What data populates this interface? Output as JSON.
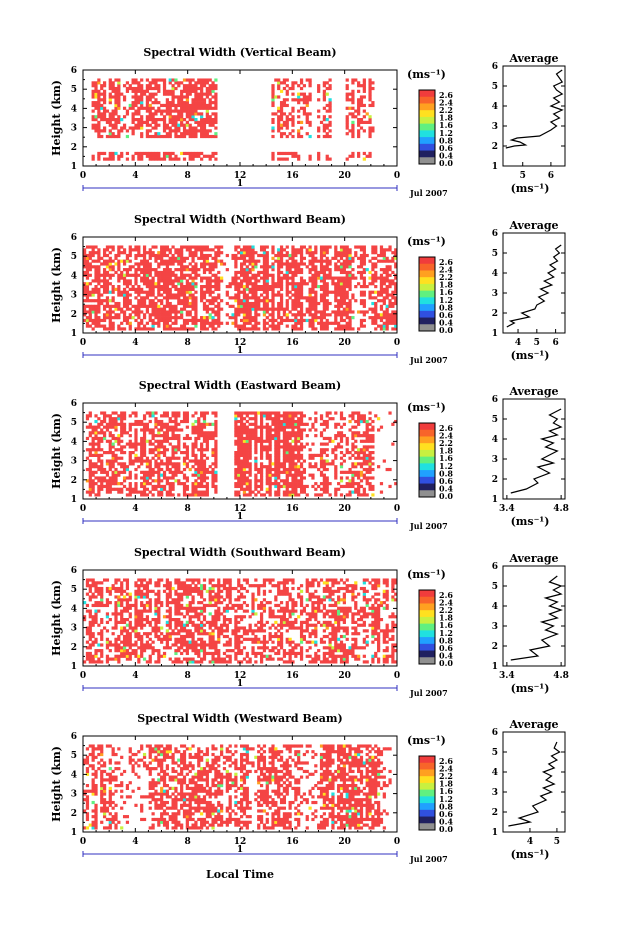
{
  "figure": {
    "xlabel": "Local Time",
    "date_label": "Jul 2007",
    "day_label": "1",
    "colorbar_unit": "(ms⁻¹)",
    "colorbar_ticks": [
      "2.6",
      "2.4",
      "2.2",
      "1.8",
      "1.6",
      "1.2",
      "0.8",
      "0.6",
      "0.4",
      "0.0"
    ],
    "colors": {
      "field": "#f44444",
      "colorbar": [
        "#f03c3c",
        "#f8642a",
        "#ffa020",
        "#ffe020",
        "#c8f040",
        "#60f080",
        "#20e0e0",
        "#20a0ff",
        "#3050e0",
        "#202060",
        "#909090"
      ]
    }
  },
  "chart_data": [
    {
      "type": "heatmap",
      "title": "Spectral Width (Vertical Beam)",
      "ylabel": "Height (km)",
      "xlim": [
        0,
        24
      ],
      "ylim": [
        1,
        6
      ],
      "xticks": [
        "0",
        "4",
        "8",
        "12",
        "16",
        "20",
        "0"
      ],
      "yticks": [
        "1",
        "2",
        "3",
        "4",
        "5",
        "6"
      ],
      "rows": [
        [
          1.3,
          1.8
        ],
        [
          2.4,
          5.6
        ]
      ],
      "segments": [
        [
          0.6,
          10.2,
          0.62,
          0.06
        ],
        [
          14.3,
          15.8,
          0.52,
          0.06
        ],
        [
          15.8,
          17.4,
          0.45,
          0.05
        ],
        [
          17.8,
          19.0,
          0.5,
          0.05
        ],
        [
          20.0,
          22.3,
          0.58,
          0.05
        ],
        [
          22.3,
          24.0,
          0.0,
          0.04
        ]
      ],
      "avg": {
        "title": "Average",
        "xlabel": "(ms⁻¹)",
        "xlim": [
          4.3,
          6.5
        ],
        "xticks": [
          "5",
          "6"
        ],
        "x": [
          4.4,
          4.7,
          5.1,
          4.9,
          4.6,
          4.8,
          5.6,
          6.0,
          6.2,
          6.0,
          6.3,
          6.1,
          6.4,
          6.0,
          6.3,
          6.1,
          6.4,
          6.2,
          6.1,
          6.4,
          6.3,
          6.2,
          6.4
        ],
        "y": [
          1.9,
          2.0,
          2.05,
          2.2,
          2.3,
          2.4,
          2.5,
          2.8,
          3.0,
          3.2,
          3.4,
          3.6,
          3.8,
          4.0,
          4.2,
          4.4,
          4.6,
          4.8,
          5.0,
          5.2,
          5.4,
          5.6,
          5.8
        ]
      }
    },
    {
      "type": "heatmap",
      "title": "Spectral Width (Northward Beam)",
      "ylabel": "Height (km)",
      "xlim": [
        0,
        24
      ],
      "ylim": [
        1,
        6
      ],
      "xticks": [
        "0",
        "4",
        "8",
        "12",
        "16",
        "20",
        "0"
      ],
      "yticks": [
        "1",
        "2",
        "3",
        "4",
        "5",
        "6"
      ],
      "rows": [
        [
          1.2,
          5.6
        ]
      ],
      "segments": [
        [
          0.0,
          10.8,
          0.62,
          0.05
        ],
        [
          10.8,
          11.3,
          0.18,
          0.04
        ],
        [
          11.3,
          20.2,
          0.7,
          0.05
        ],
        [
          20.2,
          24.0,
          0.62,
          0.05
        ]
      ],
      "avg": {
        "title": "Average",
        "xlabel": "(ms⁻¹)",
        "xlim": [
          3.2,
          6.5
        ],
        "xticks": [
          "4",
          "5",
          "6"
        ],
        "x": [
          3.4,
          3.8,
          3.6,
          4.6,
          4.2,
          4.9,
          5.0,
          5.4,
          5.1,
          5.6,
          5.2,
          5.8,
          5.4,
          5.9,
          5.6,
          6.0,
          5.7,
          6.1,
          5.9,
          6.2,
          6.0,
          6.3
        ],
        "y": [
          1.3,
          1.5,
          1.6,
          1.8,
          2.0,
          2.2,
          2.4,
          2.6,
          2.8,
          3.0,
          3.2,
          3.4,
          3.6,
          3.8,
          4.0,
          4.2,
          4.4,
          4.6,
          4.8,
          5.0,
          5.2,
          5.4
        ]
      }
    },
    {
      "type": "heatmap",
      "title": "Spectral Width (Eastward Beam)",
      "ylabel": "Height (km)",
      "xlim": [
        0,
        24
      ],
      "ylim": [
        1,
        6
      ],
      "xticks": [
        "0",
        "4",
        "8",
        "12",
        "16",
        "20",
        "0"
      ],
      "yticks": [
        "1",
        "2",
        "3",
        "4",
        "5",
        "6"
      ],
      "rows": [
        [
          1.2,
          5.6
        ]
      ],
      "segments": [
        [
          0.2,
          10.2,
          0.55,
          0.06
        ],
        [
          11.6,
          16.8,
          0.75,
          0.06
        ],
        [
          16.8,
          18.2,
          0.3,
          0.04
        ],
        [
          18.2,
          22.3,
          0.5,
          0.07
        ],
        [
          22.3,
          24.0,
          0.05,
          0.02
        ]
      ],
      "avg": {
        "title": "Average",
        "xlabel": "(ms⁻¹)",
        "xlim": [
          3.3,
          4.9
        ],
        "xticks": [
          "3.4",
          "4.8"
        ],
        "x": [
          3.5,
          3.9,
          4.2,
          4.1,
          4.5,
          4.2,
          4.6,
          4.3,
          4.5,
          4.7,
          4.4,
          4.6,
          4.3,
          4.7,
          4.5,
          4.8,
          4.6,
          4.7,
          4.5,
          4.8
        ],
        "y": [
          1.3,
          1.5,
          1.8,
          2.0,
          2.3,
          2.6,
          2.8,
          3.0,
          3.2,
          3.4,
          3.6,
          3.8,
          4.0,
          4.2,
          4.4,
          4.6,
          4.8,
          5.0,
          5.2,
          5.5
        ]
      }
    },
    {
      "type": "heatmap",
      "title": "Spectral Width (Southward Beam)",
      "ylabel": "Height (km)",
      "xlim": [
        0,
        24
      ],
      "ylim": [
        1,
        6
      ],
      "xticks": [
        "0",
        "4",
        "8",
        "12",
        "16",
        "20",
        "0"
      ],
      "yticks": [
        "1",
        "2",
        "3",
        "4",
        "5",
        "6"
      ],
      "rows": [
        [
          1.2,
          5.6
        ]
      ],
      "segments": [
        [
          0.0,
          12.0,
          0.55,
          0.06
        ],
        [
          12.0,
          16.0,
          0.45,
          0.05
        ],
        [
          16.0,
          24.0,
          0.55,
          0.07
        ]
      ],
      "avg": {
        "title": "Average",
        "xlabel": "(ms⁻¹)",
        "xlim": [
          3.3,
          4.9
        ],
        "xticks": [
          "3.4",
          "4.8"
        ],
        "x": [
          3.5,
          4.2,
          4.0,
          4.5,
          4.3,
          4.7,
          4.4,
          4.6,
          4.3,
          4.7,
          4.5,
          4.8,
          4.5,
          4.7,
          4.4,
          4.8,
          4.6,
          4.8,
          4.5,
          4.7
        ],
        "y": [
          1.3,
          1.5,
          1.8,
          2.0,
          2.3,
          2.6,
          2.8,
          3.0,
          3.2,
          3.4,
          3.6,
          3.8,
          4.0,
          4.2,
          4.4,
          4.6,
          4.8,
          5.0,
          5.2,
          5.5
        ]
      }
    },
    {
      "type": "heatmap",
      "title": "Spectral Width (Westward Beam)",
      "ylabel": "Height (km)",
      "xlim": [
        0,
        24
      ],
      "ylim": [
        1,
        6
      ],
      "xticks": [
        "0",
        "4",
        "8",
        "12",
        "16",
        "20",
        "0"
      ],
      "yticks": [
        "1",
        "2",
        "3",
        "4",
        "5",
        "6"
      ],
      "rows": [
        [
          1.2,
          5.6
        ]
      ],
      "segments": [
        [
          0.0,
          2.6,
          0.5,
          0.05
        ],
        [
          2.6,
          4.8,
          0.2,
          0.03
        ],
        [
          4.8,
          16.8,
          0.5,
          0.05
        ],
        [
          16.8,
          18.0,
          0.25,
          0.04
        ],
        [
          18.0,
          22.6,
          0.65,
          0.07
        ],
        [
          22.6,
          24.0,
          0.2,
          0.03
        ]
      ],
      "avg": {
        "title": "Average",
        "xlabel": "(ms⁻¹)",
        "xlim": [
          3.0,
          5.3
        ],
        "xticks": [
          "4",
          "5"
        ],
        "x": [
          3.2,
          4.0,
          3.6,
          4.3,
          4.1,
          4.6,
          4.4,
          4.8,
          4.5,
          4.9,
          4.6,
          4.8,
          4.5,
          4.9,
          4.7,
          5.0,
          4.8,
          5.1,
          4.9,
          5.0
        ],
        "y": [
          1.3,
          1.5,
          1.7,
          2.0,
          2.3,
          2.6,
          2.8,
          3.0,
          3.2,
          3.4,
          3.6,
          3.8,
          4.0,
          4.2,
          4.4,
          4.6,
          4.8,
          5.0,
          5.2,
          5.5
        ]
      }
    }
  ]
}
